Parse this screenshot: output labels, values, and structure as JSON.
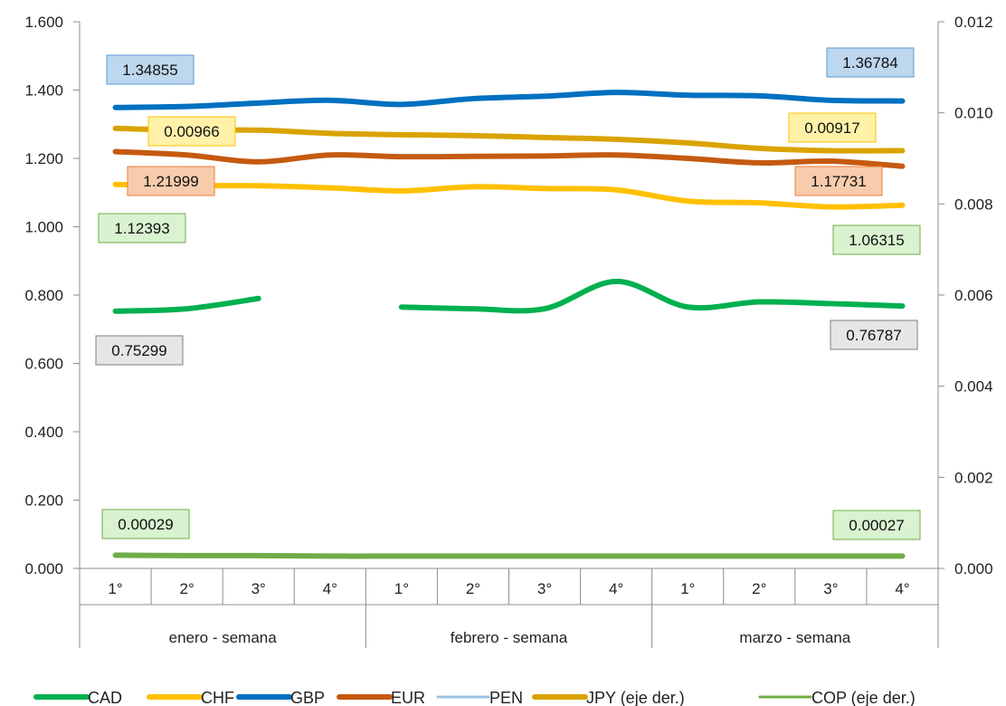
{
  "chart_data": {
    "type": "line",
    "categories": [
      "1°",
      "2°",
      "3°",
      "4°",
      "1°",
      "2°",
      "3°",
      "4°",
      "1°",
      "2°",
      "3°",
      "4°"
    ],
    "groups": [
      "enero - semana",
      "febrero - semana",
      "marzo - semana"
    ],
    "y_left": {
      "lim": [
        0,
        1.6
      ],
      "ticks": [
        "0.000",
        "0.200",
        "0.400",
        "0.600",
        "0.800",
        "1.000",
        "1.200",
        "1.400",
        "1.600"
      ]
    },
    "y_right": {
      "lim": [
        0,
        0.012
      ],
      "ticks": [
        "0.000",
        "0.002",
        "0.004",
        "0.006",
        "0.008",
        "0.010",
        "0.012"
      ]
    },
    "grid": false,
    "legend_position": "bottom",
    "series": [
      {
        "name": "CAD",
        "axis": "left",
        "color": "#00b050",
        "values": [
          0.753,
          0.76,
          0.79,
          null,
          0.765,
          0.76,
          0.76,
          0.84,
          0.765,
          0.78,
          0.775,
          0.768
        ]
      },
      {
        "name": "CHF",
        "axis": "left",
        "color": "#ffc000",
        "values": [
          1.124,
          1.12,
          1.12,
          1.114,
          1.105,
          1.117,
          1.112,
          1.108,
          1.075,
          1.07,
          1.058,
          1.063
        ]
      },
      {
        "name": "GBP",
        "axis": "left",
        "color": "#0070c0",
        "values": [
          1.349,
          1.352,
          1.362,
          1.37,
          1.358,
          1.375,
          1.382,
          1.393,
          1.385,
          1.383,
          1.37,
          1.368
        ]
      },
      {
        "name": "EUR",
        "axis": "left",
        "color": "#c55a11",
        "values": [
          1.22,
          1.21,
          1.19,
          1.21,
          1.205,
          1.206,
          1.207,
          1.21,
          1.2,
          1.187,
          1.192,
          1.177
        ]
      },
      {
        "name": "PEN",
        "axis": "left",
        "color": "#9dc3e6",
        "values": [
          null,
          null,
          null,
          null,
          null,
          null,
          null,
          null,
          null,
          null,
          null,
          null
        ]
      },
      {
        "name": "JPY (eje der.)",
        "axis": "right",
        "color": "#d9a300",
        "values": [
          0.00966,
          0.00962,
          0.00962,
          0.00955,
          0.00952,
          0.0095,
          0.00946,
          0.00942,
          0.00934,
          0.00922,
          0.00917,
          0.00917
        ]
      },
      {
        "name": "COP (eje der.)",
        "axis": "right",
        "color": "#70ad47",
        "values": [
          0.00029,
          0.00028,
          0.00028,
          0.00027,
          0.00027,
          0.00027,
          0.00027,
          0.00027,
          0.00027,
          0.00027,
          0.00027,
          0.00027
        ]
      }
    ],
    "data_labels": [
      {
        "text": "1.34855",
        "series": "GBP",
        "side": "start",
        "fill": "#bdd7ee",
        "stroke": "#5b9bd5"
      },
      {
        "text": "1.36784",
        "series": "GBP",
        "side": "end",
        "fill": "#bdd7ee",
        "stroke": "#5b9bd5"
      },
      {
        "text": "0.00966",
        "series": "JPY (eje der.)",
        "side": "start",
        "fill": "#fff2a8",
        "stroke": "#ffc000"
      },
      {
        "text": "0.00917",
        "series": "JPY (eje der.)",
        "side": "end",
        "fill": "#fff2a8",
        "stroke": "#ffc000"
      },
      {
        "text": "1.21999",
        "series": "EUR",
        "side": "start",
        "fill": "#f8cbad",
        "stroke": "#ed7d31"
      },
      {
        "text": "1.17731",
        "series": "EUR",
        "side": "end",
        "fill": "#f8cbad",
        "stroke": "#ed7d31"
      },
      {
        "text": "1.12393",
        "series": "CHF",
        "side": "start",
        "fill": "#d9f2d0",
        "stroke": "#70ad47"
      },
      {
        "text": "1.06315",
        "series": "CHF",
        "side": "end",
        "fill": "#d9f2d0",
        "stroke": "#70ad47"
      },
      {
        "text": "0.75299",
        "series": "CAD",
        "side": "start",
        "fill": "#e7e6e6",
        "stroke": "#7f7f7f"
      },
      {
        "text": "0.76787",
        "series": "CAD",
        "side": "end",
        "fill": "#e7e6e6",
        "stroke": "#7f7f7f"
      },
      {
        "text": "0.00029",
        "series": "COP (eje der.)",
        "side": "start",
        "fill": "#d9f2d0",
        "stroke": "#70ad47"
      },
      {
        "text": "0.00027",
        "series": "COP (eje der.)",
        "side": "end",
        "fill": "#d9f2d0",
        "stroke": "#70ad47"
      }
    ]
  }
}
